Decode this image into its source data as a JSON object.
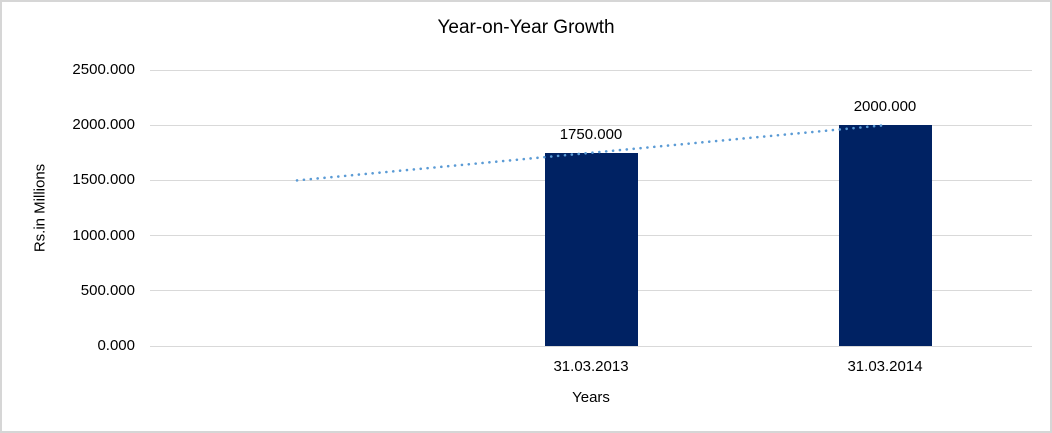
{
  "chart_data": {
    "type": "bar",
    "title": "Year-on-Year Growth",
    "xlabel": "Years",
    "ylabel": "Rs.in Millions",
    "categories": [
      "31.03.2013",
      "31.03.2014"
    ],
    "values": [
      1750,
      2000
    ],
    "data_labels": [
      "1750.000",
      "2000.000"
    ],
    "ylim": [
      0,
      2500
    ],
    "y_ticks": [
      {
        "value": 0,
        "label": "0.000"
      },
      {
        "value": 500,
        "label": "500.000"
      },
      {
        "value": 1000,
        "label": "1000.000"
      },
      {
        "value": 1500,
        "label": "1500.000"
      },
      {
        "value": 2000,
        "label": "2000.000"
      },
      {
        "value": 2500,
        "label": "2500.000"
      }
    ],
    "grid": true,
    "legend": "none",
    "colors": {
      "bar": "#002263",
      "trendline": "#5b9bd5",
      "gridline": "#d9d9d9",
      "text": "#000000",
      "chart_border": "#d6d6d6"
    },
    "trendline": {
      "style": "dotted",
      "color": "#5b9bd5",
      "x_slots": [
        0,
        1,
        2
      ],
      "values": [
        1500,
        1750,
        2000
      ]
    },
    "layout_hints": {
      "n_slots": 3,
      "bar_slots": [
        1,
        2
      ],
      "axis_lines": "none",
      "legend_position": "none"
    }
  }
}
